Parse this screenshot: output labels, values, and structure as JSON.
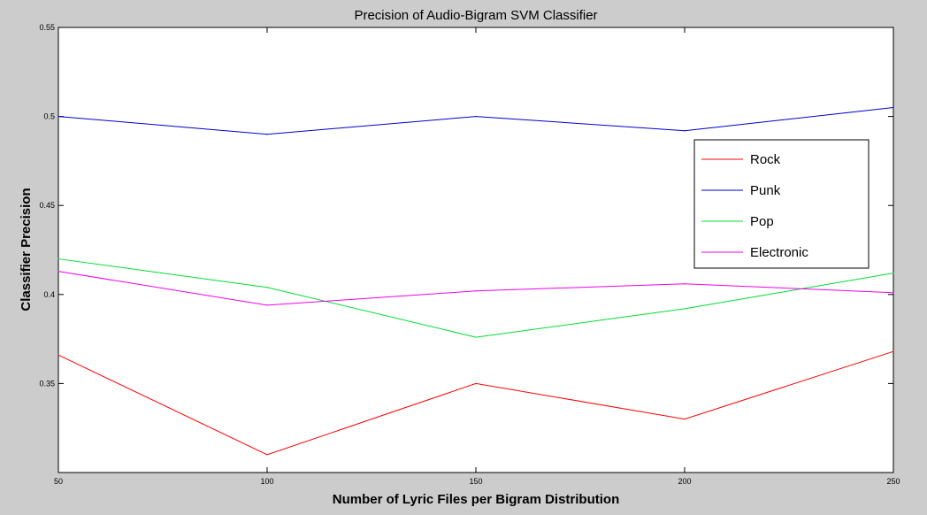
{
  "chart_data": {
    "type": "line",
    "title": "Precision of Audio-Bigram SVM Classifier",
    "xlabel": "Number of Lyric Files per Bigram Distribution",
    "ylabel": "Classifier Precision",
    "x": [
      50,
      100,
      150,
      200,
      250
    ],
    "x_ticks": [
      "50",
      "100",
      "150",
      "200",
      "250"
    ],
    "y_ticks": [
      "0.35",
      "0.4",
      "0.45",
      "0.5",
      "0.55"
    ],
    "xlim": [
      50,
      250
    ],
    "ylim": [
      0.3,
      0.55
    ],
    "grid": false,
    "legend_position": "top-right",
    "series": [
      {
        "name": "Rock",
        "color": "#ff0000",
        "values": [
          0.366,
          0.31,
          0.35,
          0.33,
          0.368
        ]
      },
      {
        "name": "Punk",
        "color": "#0000cc",
        "values": [
          0.5,
          0.49,
          0.5,
          0.492,
          0.505
        ]
      },
      {
        "name": "Pop",
        "color": "#00dd33",
        "values": [
          0.42,
          0.404,
          0.376,
          0.392,
          0.412
        ]
      },
      {
        "name": "Electronic",
        "color": "#ee00ee",
        "values": [
          0.413,
          0.394,
          0.402,
          0.406,
          0.401
        ]
      }
    ]
  }
}
